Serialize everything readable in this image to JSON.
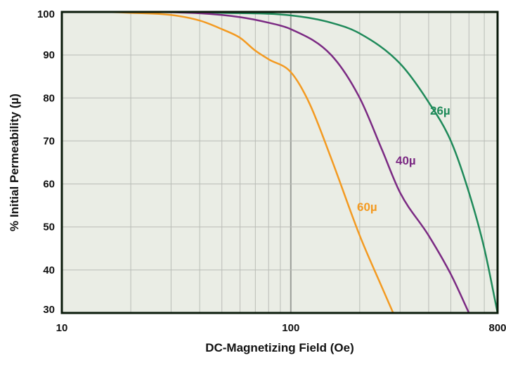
{
  "chart_data": {
    "type": "line",
    "xlabel": "DC-Magnetizing Field (Oe)",
    "ylabel": "% Initial Permeability (µ)",
    "x_scale": "log",
    "xlim": [
      10,
      800
    ],
    "ylim": [
      30,
      100
    ],
    "x_ticks": [
      10,
      100,
      800
    ],
    "x_tick_labels": [
      "10",
      "100",
      "800"
    ],
    "y_ticks": [
      30,
      40,
      50,
      60,
      70,
      80,
      90,
      100
    ],
    "y_tick_labels": [
      "30",
      "40",
      "50",
      "60",
      "70",
      "80",
      "90",
      "100"
    ],
    "grid": true,
    "plot_background": "#eaede5",
    "grid_color": "#b9bcb6",
    "series": [
      {
        "name": "26µ",
        "color": "#1f8a5a",
        "x": [
          10,
          20,
          50,
          100,
          150,
          200,
          300,
          400,
          500,
          600,
          700,
          800
        ],
        "y": [
          100,
          100,
          99.8,
          99.2,
          97.5,
          95,
          88,
          79,
          70,
          58,
          45,
          30
        ]
      },
      {
        "name": "40µ",
        "color": "#7b2a83",
        "x": [
          10,
          20,
          40,
          60,
          80,
          100,
          150,
          200,
          250,
          300,
          400,
          500,
          600
        ],
        "y": [
          100,
          100,
          99.7,
          98.8,
          97.5,
          96,
          90,
          80,
          68,
          58,
          48,
          39,
          30
        ]
      },
      {
        "name": "60µ",
        "color": "#f39a21",
        "x": [
          10,
          15,
          20,
          30,
          40,
          50,
          60,
          70,
          80,
          100,
          120,
          150,
          200,
          250,
          280
        ],
        "y": [
          100,
          100,
          99.8,
          99.3,
          98,
          96,
          94,
          91,
          89,
          86,
          79,
          66,
          48,
          36,
          30
        ]
      }
    ]
  }
}
